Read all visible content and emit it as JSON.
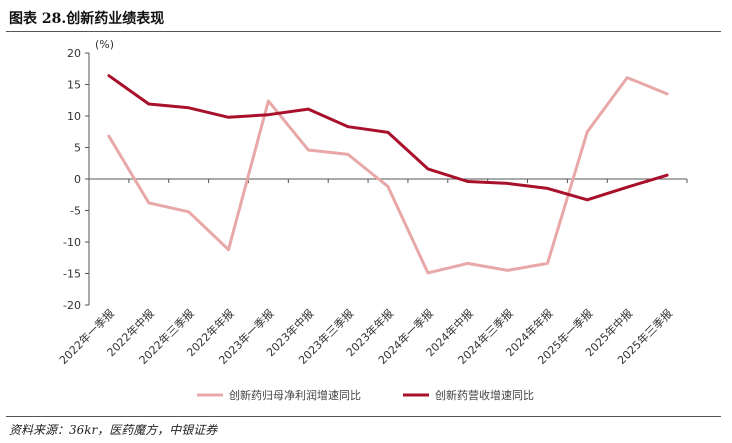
{
  "title": "图表 28.创新药业绩表现",
  "source": "资料来源：36kr，医药魔方，中银证券",
  "chart_data": {
    "type": "line",
    "unit_label": "(%)",
    "ylim": [
      -20,
      20
    ],
    "yticks": [
      20,
      15,
      10,
      5,
      0,
      -5,
      -10,
      -15,
      -20
    ],
    "grid": false,
    "legend_position": "bottom",
    "categories": [
      "2022年一季报",
      "2022年中报",
      "2022年三季报",
      "2022年年报",
      "2023年一季报",
      "2023年中报",
      "2023年三季报",
      "2023年年报",
      "2024年一季报",
      "2024年中报",
      "2024年三季报",
      "2024年年报",
      "2025年一季报",
      "2025年中报",
      "2025年三季报"
    ],
    "series": [
      {
        "name": "创新药归母净利润增速同比",
        "color": "#e8a8a8",
        "values": [
          6.8,
          -3.8,
          -5.2,
          -11.2,
          12.4,
          4.6,
          3.9,
          -1.2,
          -14.9,
          -13.4,
          -14.5,
          -13.4,
          7.5,
          16.1,
          13.5
        ]
      },
      {
        "name": "创新药营收增速同比",
        "color": "#a8102b",
        "values": [
          16.4,
          11.9,
          11.3,
          9.8,
          10.2,
          11.1,
          8.3,
          7.4,
          1.6,
          -0.4,
          -0.7,
          -1.5,
          -3.3,
          -1.3,
          0.6
        ]
      }
    ]
  }
}
